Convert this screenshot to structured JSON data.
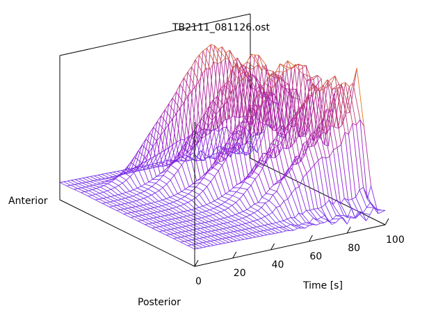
{
  "chart_data": {
    "type": "surface-wireframe",
    "title": "TB2111_081126.ost",
    "xlabel": "Time [s]",
    "x_range": [
      0,
      100
    ],
    "x_ticks": [
      {
        "value": 0,
        "label": "0"
      },
      {
        "value": 20,
        "label": "20"
      },
      {
        "value": 40,
        "label": "40"
      },
      {
        "value": 60,
        "label": "60"
      },
      {
        "value": 80,
        "label": "80"
      },
      {
        "value": 100,
        "label": "100"
      }
    ],
    "y_axis_end_labels": {
      "front": "Posterior",
      "back": "Anterior"
    },
    "z_range": [
      0,
      1
    ],
    "grid": false,
    "n_time_samples": 51,
    "n_profiles": 20,
    "colormap": [
      "#6a3ff2",
      "#8f1fd8",
      "#b52a8f",
      "#e07a12"
    ],
    "baseline_level": 0.12,
    "ridges": [
      {
        "time": 100,
        "position": 0.2,
        "amplitude": 0.86
      },
      {
        "time": 93,
        "position": 0.34,
        "amplitude": 0.88
      },
      {
        "time": 85,
        "position": 0.5,
        "amplitude": 0.95
      },
      {
        "time": 77,
        "position": 0.66,
        "amplitude": 0.92
      },
      {
        "time": 69,
        "position": 0.82,
        "amplitude": 0.94
      }
    ]
  }
}
